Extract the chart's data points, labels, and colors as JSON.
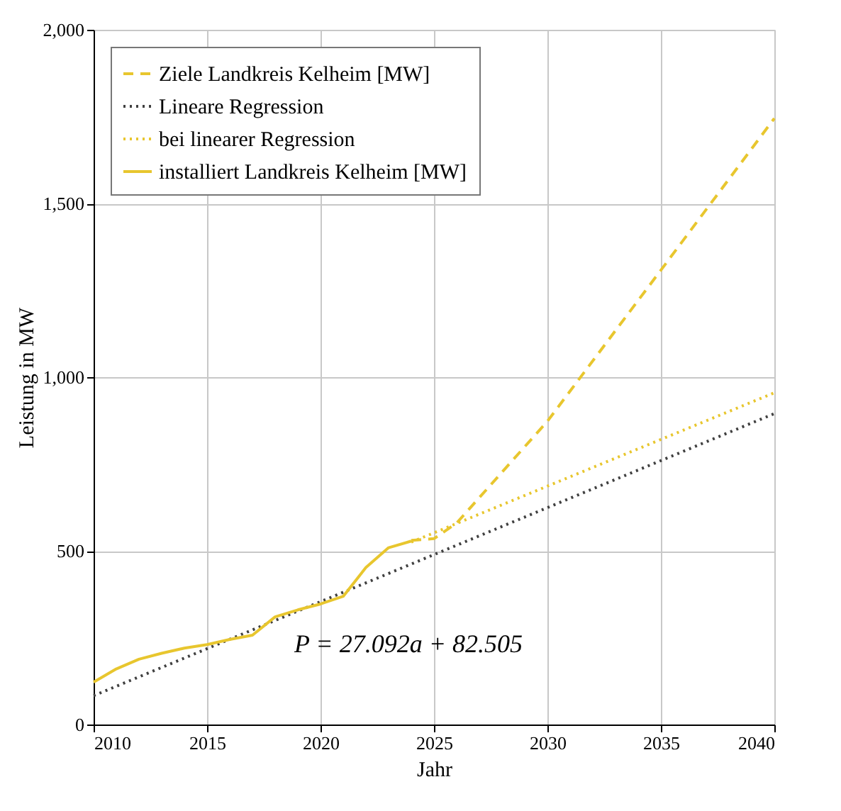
{
  "chart_data": {
    "type": "line",
    "xlabel": "Jahr",
    "ylabel": "Leistung in MW",
    "xlim": [
      2010,
      2040
    ],
    "xticks": [
      2010,
      2015,
      2020,
      2025,
      2030,
      2035,
      2040
    ],
    "ylim": [
      0,
      2000
    ],
    "yticks": [
      0,
      500,
      {
        "value": 1000,
        "label": "1,000"
      },
      {
        "value": 1500,
        "label": "1,500"
      },
      {
        "value": 2000,
        "label": "2,000"
      }
    ],
    "grid": true,
    "legend": "top left",
    "annotations": [
      "P = 27.092a + 82.505"
    ],
    "series": [
      {
        "name": "Ziele Landkreis Kelheim [MW]",
        "color": "#e8c62e",
        "line_style": "dashed",
        "x": [
          2024,
          2025,
          2026,
          2030,
          2035,
          2040
        ],
        "values": [
          530,
          535,
          580,
          873,
          1308,
          1745
        ]
      },
      {
        "name": "Lineare Regression",
        "color": "#404040",
        "line_style": "dotted",
        "x": [
          2010,
          2040
        ],
        "values": [
          83,
          895
        ]
      },
      {
        "name": "bei linearer Regression",
        "color": "#e8c62e",
        "line_style": "dotted",
        "x": [
          2024,
          2040
        ],
        "values": [
          525,
          955
        ]
      },
      {
        "name": "installiert Landkreis Kelheim [MW]",
        "color": "#e8c62e",
        "line_style": "solid",
        "x": [
          2010,
          2011,
          2012,
          2013,
          2014,
          2015,
          2016,
          2017,
          2018,
          2019,
          2020,
          2021,
          2022,
          2023,
          2024
        ],
        "values": [
          122,
          160,
          188,
          205,
          220,
          230,
          245,
          257,
          310,
          330,
          347,
          369,
          452,
          509,
          528
        ]
      }
    ]
  }
}
